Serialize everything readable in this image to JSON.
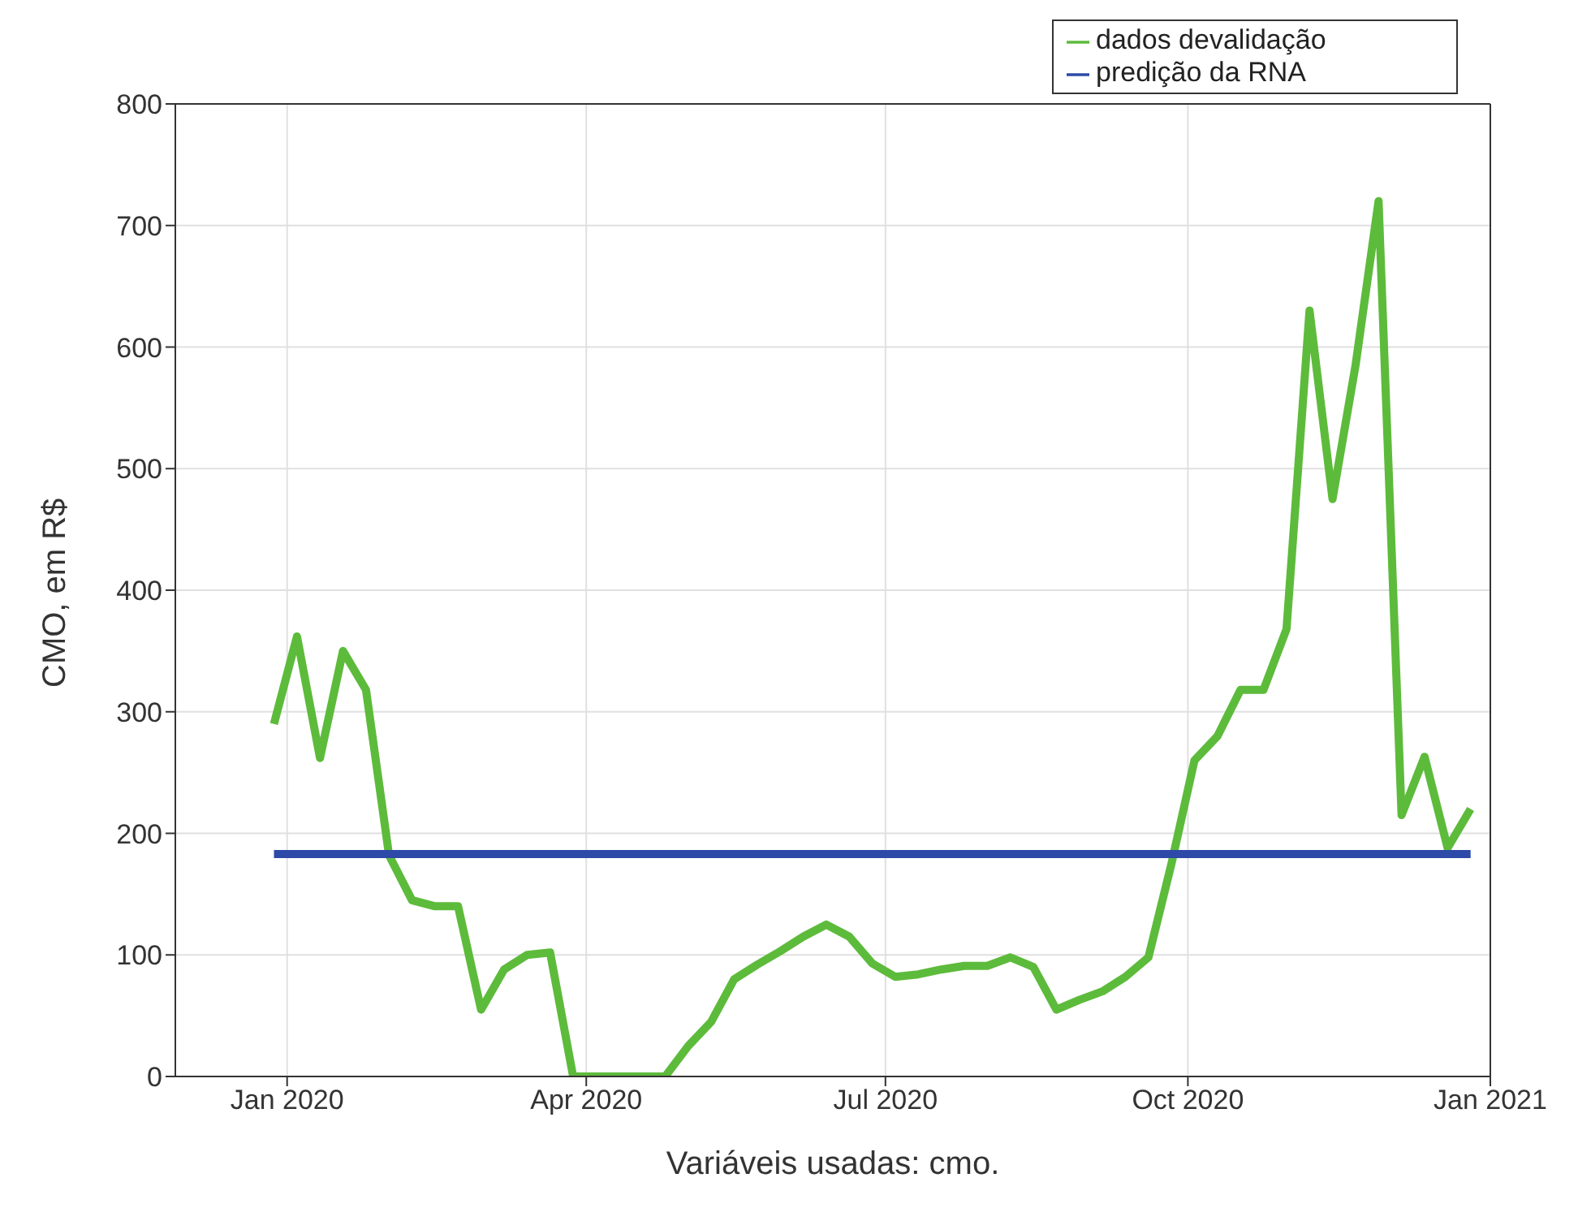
{
  "chart_data": {
    "type": "line",
    "xlabel": "Variáveis usadas: cmo.",
    "ylabel": "CMO, em R$",
    "x": [
      "2019-12-28",
      "2020-01-04",
      "2020-01-11",
      "2020-01-18",
      "2020-01-25",
      "2020-02-01",
      "2020-02-08",
      "2020-02-15",
      "2020-02-22",
      "2020-02-29",
      "2020-03-07",
      "2020-03-14",
      "2020-03-21",
      "2020-03-28",
      "2020-04-04",
      "2020-04-11",
      "2020-04-18",
      "2020-04-25",
      "2020-05-02",
      "2020-05-09",
      "2020-05-16",
      "2020-05-23",
      "2020-05-30",
      "2020-06-06",
      "2020-06-13",
      "2020-06-20",
      "2020-06-27",
      "2020-07-04",
      "2020-07-11",
      "2020-07-18",
      "2020-07-25",
      "2020-08-01",
      "2020-08-08",
      "2020-08-15",
      "2020-08-22",
      "2020-08-29",
      "2020-09-05",
      "2020-09-12",
      "2020-09-19",
      "2020-09-26",
      "2020-10-03",
      "2020-10-10",
      "2020-10-17",
      "2020-10-24",
      "2020-10-31",
      "2020-11-07",
      "2020-11-14",
      "2020-11-21",
      "2020-11-28",
      "2020-12-05",
      "2020-12-12",
      "2020-12-19",
      "2020-12-26"
    ],
    "series": [
      {
        "name": "dados devalidação",
        "color": "#5dbb3b",
        "values": [
          290,
          362,
          262,
          350,
          318,
          182,
          145,
          140,
          140,
          55,
          88,
          100,
          102,
          0,
          0,
          0,
          0,
          0,
          25,
          45,
          80,
          92,
          103,
          115,
          125,
          115,
          93,
          82,
          84,
          88,
          91,
          91,
          98,
          90,
          55,
          63,
          70,
          82,
          98,
          175,
          260,
          280,
          318,
          318,
          368,
          630,
          475,
          585,
          720,
          215,
          263,
          188,
          220
        ]
      },
      {
        "name": "predição da RNA",
        "color": "#2e4aa8",
        "x": [
          "2019-12-28",
          "2020-12-26"
        ],
        "values": [
          183,
          183
        ]
      }
    ],
    "xlim": [
      "2019-11-28",
      "2021-01-01"
    ],
    "xticks": [
      {
        "value": "2020-01-01",
        "label": "Jan 2020"
      },
      {
        "value": "2020-04-01",
        "label": "Apr 2020"
      },
      {
        "value": "2020-07-01",
        "label": "Jul 2020"
      },
      {
        "value": "2020-10-01",
        "label": "Oct 2020"
      },
      {
        "value": "2021-01-01",
        "label": "Jan 2021"
      }
    ],
    "ylim": [
      0,
      800
    ],
    "yticks": [
      0,
      100,
      200,
      300,
      400,
      500,
      600,
      700,
      800
    ],
    "grid": true,
    "legend": "top right",
    "marker": "none",
    "line_style": "solid"
  }
}
